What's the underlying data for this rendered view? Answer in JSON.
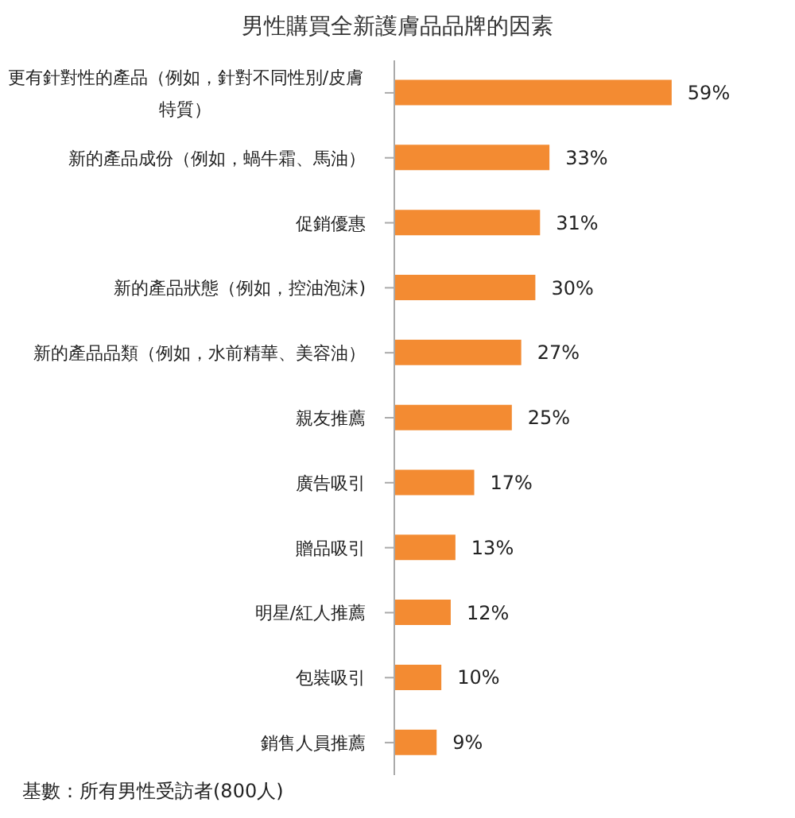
{
  "chart_data": {
    "type": "bar",
    "orientation": "horizontal",
    "title": "男性購買全新護膚品品牌的因素",
    "categories": [
      "更有針對性的產品（例如，針對不同性別/皮膚特質）",
      "新的產品成份（例如，蝸牛霜、馬油）",
      "促銷優惠",
      "新的產品狀態（例如，控油泡沫)",
      "新的產品品類（例如，水前精華、美容油）",
      "親友推薦",
      "廣告吸引",
      "贈品吸引",
      "明星/紅人推薦",
      "包裝吸引",
      "銷售人員推薦"
    ],
    "values": [
      59,
      33,
      31,
      30,
      27,
      25,
      17,
      13,
      12,
      10,
      9
    ],
    "value_labels": [
      "59%",
      "33%",
      "31%",
      "30%",
      "27%",
      "25%",
      "17%",
      "13%",
      "12%",
      "10%",
      "9%"
    ],
    "color": "#f38b32",
    "annotations": [
      "基數：所有男性受訪者(800人)"
    ]
  }
}
